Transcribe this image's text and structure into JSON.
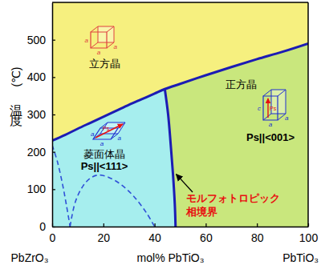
{
  "chart_data": {
    "type": "area",
    "xlim": [
      0,
      100
    ],
    "ylim": [
      0,
      600
    ],
    "xticks": [
      0,
      20,
      40,
      60,
      80,
      100
    ],
    "yticks": [
      0,
      100,
      200,
      300,
      400,
      500
    ],
    "xlabel": "mol% PbTiO₃",
    "x_end_labels": [
      "PbZrO₃",
      "PbTiO₃"
    ],
    "ylabel": "温度",
    "yunit": "(℃)",
    "series": [
      {
        "color": "#1c1cb4",
        "line_style": "solid",
        "x": [
          0,
          5,
          10,
          15,
          20,
          25,
          30,
          35,
          40,
          44,
          50,
          60,
          70,
          80,
          90,
          100
        ],
        "values": [
          230,
          245,
          262,
          278,
          294,
          310,
          326,
          341,
          356,
          368,
          382,
          405,
          427,
          448,
          468,
          490
        ]
      },
      {
        "color": "#1c1cb4",
        "line_style": "solid",
        "x": [
          44,
          45.3,
          46.3,
          47.2,
          47.9,
          48.2
        ],
        "values": [
          368,
          300,
          220,
          140,
          60,
          0
        ]
      },
      {
        "color": "#3050d8",
        "line_style": "dashed",
        "x": [
          0,
          2,
          4,
          5.5,
          7
        ],
        "values": [
          218,
          175,
          115,
          60,
          0
        ]
      },
      {
        "color": "#3050d8",
        "line_style": "dashed",
        "x": [
          7,
          9,
          12,
          15,
          18,
          22,
          27,
          32,
          37,
          40
        ],
        "values": [
          0,
          65,
          108,
          130,
          138,
          132,
          112,
          80,
          35,
          0
        ]
      }
    ],
    "regions": [
      {
        "name": "立方晶",
        "color": "#f6f07f",
        "cell_labels": [
          "a",
          "a",
          "a"
        ]
      },
      {
        "name": "菱面体晶",
        "polarization": "Ps||<111>",
        "color": "#a6eeee",
        "cell_labels": [
          "a",
          "a",
          "a"
        ],
        "cell_vector": "Ps"
      },
      {
        "name": "正方晶",
        "polarization": "Ps||<001>",
        "color": "#c9e77d",
        "cell_labels": [
          "c",
          "a",
          "a"
        ],
        "cell_vector": "Ps"
      }
    ],
    "annotation": {
      "text": [
        "モルフォトロピック",
        "相境界"
      ],
      "color": "#e81010"
    }
  }
}
